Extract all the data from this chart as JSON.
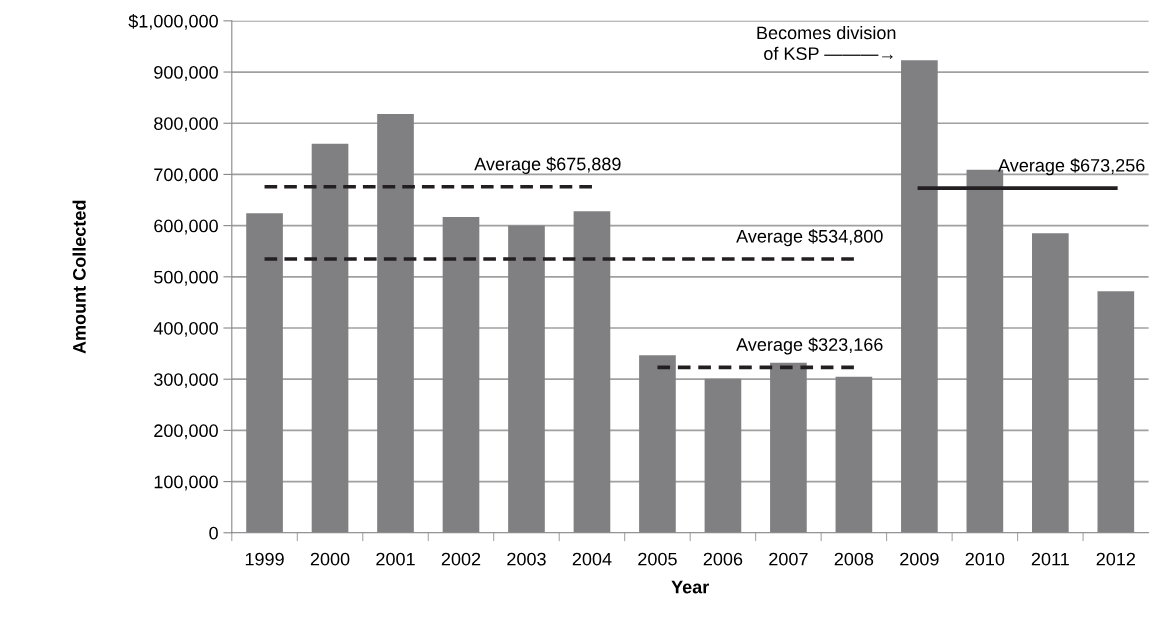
{
  "chart_data": {
    "type": "bar",
    "xlabel": "Year",
    "ylabel": "Amount Collected",
    "categories": [
      "1999",
      "2000",
      "2001",
      "2002",
      "2003",
      "2004",
      "2005",
      "2006",
      "2007",
      "2008",
      "2009",
      "2010",
      "2011",
      "2012"
    ],
    "series": [
      {
        "color": "#808083",
        "values": [
          624000,
          760000,
          818000,
          617000,
          600000,
          628000,
          347000,
          301000,
          332000,
          305000,
          923000,
          709000,
          585000,
          472000
        ]
      },
      {
        "type": "line",
        "name": "Average $675,889",
        "color": "#231f20",
        "line_style": "dashed",
        "values": [
          675889,
          675889,
          675889,
          675889,
          675889,
          675889,
          null,
          null,
          null,
          null,
          null,
          null,
          null,
          null
        ]
      },
      {
        "type": "line",
        "name": "Average $534,800",
        "color": "#231f20",
        "line_style": "dashed",
        "values": [
          534800,
          534800,
          534800,
          534800,
          534800,
          534800,
          534800,
          534800,
          534800,
          534800,
          null,
          null,
          null,
          null
        ]
      },
      {
        "type": "line",
        "name": "Average $323,166",
        "color": "#231f20",
        "line_style": "dashed",
        "values": [
          null,
          null,
          null,
          null,
          null,
          null,
          323166,
          323166,
          323166,
          323166,
          null,
          null,
          null,
          null
        ]
      },
      {
        "type": "line",
        "name": "Average $673,256",
        "color": "#231f20",
        "line_style": "solid",
        "values": [
          null,
          null,
          null,
          null,
          null,
          null,
          null,
          null,
          null,
          null,
          673256,
          673256,
          673256,
          673256
        ]
      }
    ],
    "annotations": [
      "Becomes division\nof KSP ———→"
    ],
    "ylim": [
      0,
      1000000
    ],
    "yticks": [
      0,
      {
        "value": 100000,
        "label": "100,000"
      },
      {
        "value": 200000,
        "label": "200,000"
      },
      {
        "value": 300000,
        "label": "300,000"
      },
      {
        "value": 400000,
        "label": "400,000"
      },
      {
        "value": 500000,
        "label": "500,000"
      },
      {
        "value": 600000,
        "label": "600,000"
      },
      {
        "value": 700000,
        "label": "700,000"
      },
      {
        "value": 800000,
        "label": "800,000"
      },
      {
        "value": 900000,
        "label": "900,000"
      },
      {
        "value": 1000000,
        "label": "$1,000,000"
      }
    ],
    "grid": "y",
    "legend": false,
    "marker": "none"
  }
}
